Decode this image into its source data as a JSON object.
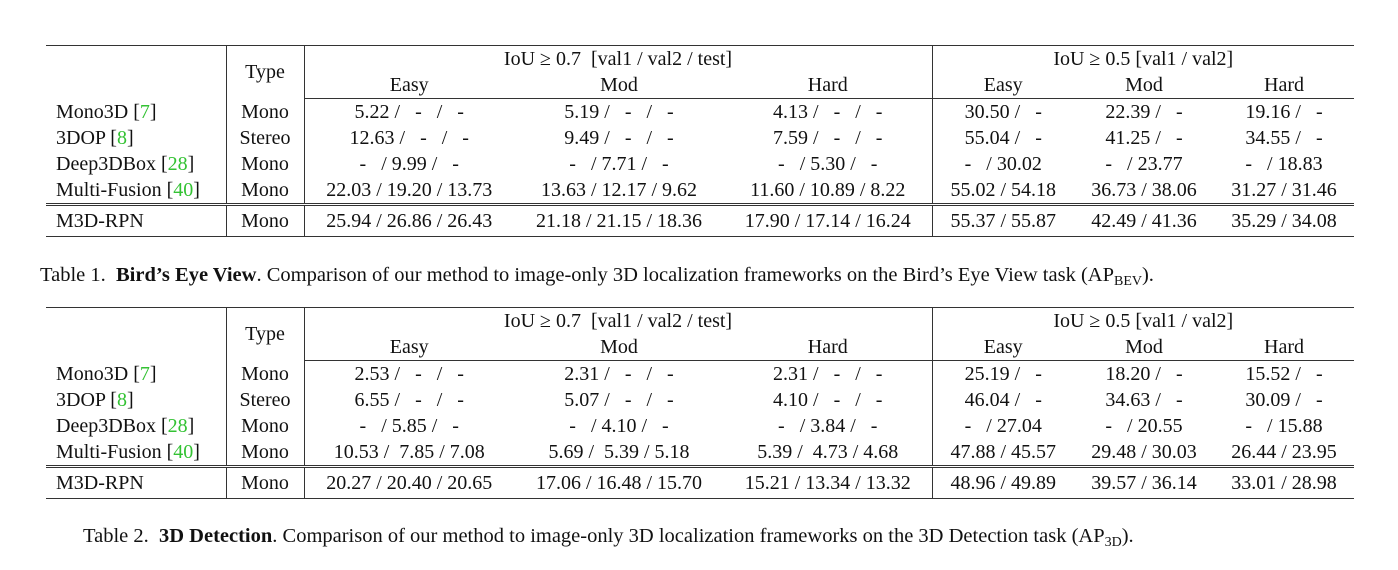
{
  "tables": [
    {
      "id": "bev",
      "header": {
        "type_label": "Type",
        "group1": {
          "metric": "IoU ≥ 0.7",
          "splits": "[val1 / val2 / test]"
        },
        "group2": {
          "metric": "IoU ≥ 0.5",
          "splits": "[val1 / val2]"
        },
        "sub": [
          "Easy",
          "Mod",
          "Hard",
          "Easy",
          "Mod",
          "Hard"
        ]
      },
      "rows": [
        {
          "name": "Mono3D",
          "ref": "7",
          "type": "Mono",
          "vals": [
            "5.22 /   -   /   -",
            "5.19 /   -   /   -",
            "4.13 /   -   /   -",
            "30.50 /   -",
            "22.39 /   -",
            "19.16 /   -"
          ]
        },
        {
          "name": "3DOP",
          "ref": "8",
          "type": "Stereo",
          "vals": [
            "12.63 /   -   /   -",
            "9.49 /   -   /   -",
            "7.59 /   -   /   -",
            "55.04 /   -",
            "41.25 /   -",
            "34.55 /   -"
          ]
        },
        {
          "name": "Deep3DBox",
          "ref": "28",
          "type": "Mono",
          "vals": [
            "-   / 9.99 /   -",
            "-   / 7.71 /   -",
            "-   / 5.30 /   -",
            "-   / 30.02",
            "-   / 23.77",
            "-   / 18.83"
          ]
        },
        {
          "name": "Multi-Fusion",
          "ref": "40",
          "type": "Mono",
          "vals": [
            "22.03 / 19.20 / 13.73",
            "13.63 / 12.17 / 9.62",
            "11.60 / 10.89 / 8.22",
            "55.02 / 54.18",
            "36.73 / 38.06",
            "31.27 / 31.46"
          ]
        },
        {
          "name": "M3D-RPN",
          "ref": "",
          "type": "Mono",
          "vals": [
            "25.94 / 26.86 / 26.43",
            "21.18 / 21.15 / 18.36",
            "17.90 / 17.14 / 16.24",
            "55.37 / 55.87",
            "42.49 / 41.36",
            "35.29 / 34.08"
          ]
        }
      ],
      "caption": {
        "prefix": "Table 1.",
        "title": "Bird’s Eye View",
        "text": ". Comparison of our method to image-only 3D localization frameworks on the Bird’s Eye View task (AP",
        "sub": "BEV",
        "end": ")."
      }
    },
    {
      "id": "3d",
      "header": {
        "type_label": "Type",
        "group1": {
          "metric": "IoU ≥ 0.7",
          "splits": "[val1 / val2 / test]"
        },
        "group2": {
          "metric": "IoU ≥ 0.5",
          "splits": "[val1 / val2]"
        },
        "sub": [
          "Easy",
          "Mod",
          "Hard",
          "Easy",
          "Mod",
          "Hard"
        ]
      },
      "rows": [
        {
          "name": "Mono3D",
          "ref": "7",
          "type": "Mono",
          "vals": [
            "2.53 /   -   /   -",
            "2.31 /   -   /   -",
            "2.31 /   -   /   -",
            "25.19 /   -",
            "18.20 /   -",
            "15.52 /   -"
          ]
        },
        {
          "name": "3DOP",
          "ref": "8",
          "type": "Stereo",
          "vals": [
            "6.55 /   -   /   -",
            "5.07 /   -   /   -",
            "4.10 /   -   /   -",
            "46.04 /   -",
            "34.63 /   -",
            "30.09 /   -"
          ]
        },
        {
          "name": "Deep3DBox",
          "ref": "28",
          "type": "Mono",
          "vals": [
            "-   / 5.85 /   -",
            "-   / 4.10 /   -",
            "-   / 3.84 /   -",
            "-   / 27.04",
            "-   / 20.55",
            "-   / 15.88"
          ]
        },
        {
          "name": "Multi-Fusion",
          "ref": "40",
          "type": "Mono",
          "vals": [
            "10.53 /  7.85 / 7.08",
            "5.69 /  5.39 / 5.18",
            "5.39 /  4.73 / 4.68",
            "47.88 / 45.57",
            "29.48 / 30.03",
            "26.44 / 23.95"
          ]
        },
        {
          "name": "M3D-RPN",
          "ref": "",
          "type": "Mono",
          "vals": [
            "20.27 / 20.40 / 20.65",
            "17.06 / 16.48 / 15.70",
            "15.21 / 13.34 / 13.32",
            "48.96 / 49.89",
            "39.57 / 36.14",
            "33.01 / 28.98"
          ]
        }
      ],
      "caption": {
        "prefix": "Table 2.",
        "title": "3D Detection",
        "text": ". Comparison of our method to image-only 3D localization frameworks on the 3D Detection task (AP",
        "sub": "3D",
        "end": ")."
      }
    }
  ]
}
